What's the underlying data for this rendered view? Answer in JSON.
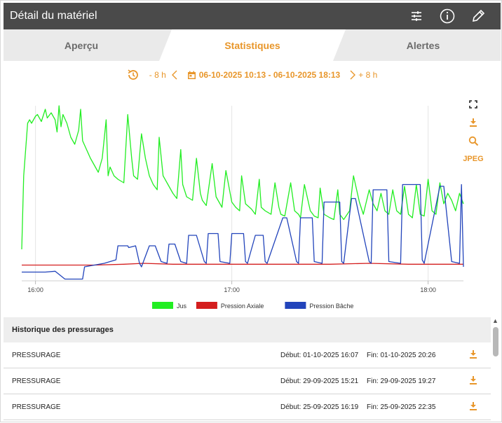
{
  "header": {
    "title": "Détail du matériel",
    "icons": [
      "tune-icon",
      "info-icon",
      "edit-icon"
    ]
  },
  "tabs": [
    {
      "label": "Aperçu",
      "active": false
    },
    {
      "label": "Statistiques",
      "active": true
    },
    {
      "label": "Alertes",
      "active": false
    }
  ],
  "toolbar": {
    "back_label": "- 8 h",
    "range_label": "06-10-2025 10:13 - 06-10-2025 18:13",
    "forward_label": "+ 8 h"
  },
  "chart_tools": {
    "jpeg_label": "JPEG"
  },
  "colors": {
    "accent": "#e8962a",
    "jus": "#22ee22",
    "axiale": "#d41e1e",
    "bache": "#2244bb"
  },
  "chart_data": {
    "type": "line",
    "x_ticks": [
      "16:00",
      "17:00",
      "18:00"
    ],
    "x_range": [
      15.93,
      18.18
    ],
    "y_range": [
      0,
      100
    ],
    "legend_position": "bottom",
    "series": [
      {
        "name": "Jus",
        "color": "#22ee22",
        "x": [
          15.93,
          15.94,
          15.96,
          15.97,
          15.98,
          16.0,
          16.01,
          16.03,
          16.05,
          16.06,
          16.08,
          16.1,
          16.11,
          16.12,
          16.13,
          16.14,
          16.16,
          16.18,
          16.2,
          16.22,
          16.23,
          16.24,
          16.26,
          16.28,
          16.3,
          16.32,
          16.34,
          16.36,
          16.37,
          16.38,
          16.4,
          16.42,
          16.45,
          16.47,
          16.49,
          16.5,
          16.52,
          16.54,
          16.56,
          16.58,
          16.6,
          16.62,
          16.63,
          16.65,
          16.68,
          16.7,
          16.72,
          16.74,
          16.75,
          16.77,
          16.8,
          16.82,
          16.84,
          16.85,
          16.87,
          16.9,
          16.92,
          16.94,
          16.95,
          16.97,
          17.0,
          17.02,
          17.04,
          17.05,
          17.07,
          17.1,
          17.12,
          17.14,
          17.15,
          17.17,
          17.2,
          17.22,
          17.24,
          17.25,
          17.27,
          17.3,
          17.32,
          17.34,
          17.35,
          17.37,
          17.4,
          17.42,
          17.44,
          17.45,
          17.47,
          17.5,
          17.52,
          17.54,
          17.55,
          17.57,
          17.6,
          17.62,
          17.64,
          17.65,
          17.67,
          17.7,
          17.72,
          17.74,
          17.76,
          17.78,
          17.8,
          17.82,
          17.84,
          17.86,
          17.88,
          17.9,
          17.92,
          17.94,
          17.96,
          17.98,
          18.0,
          18.02,
          18.04,
          18.06,
          18.08,
          18.1,
          18.12,
          18.14,
          18.16,
          18.18
        ],
        "y": [
          18,
          60,
          90,
          92,
          90,
          94,
          95,
          91,
          98,
          93,
          96,
          92,
          85,
          100,
          88,
          95,
          90,
          82,
          78,
          86,
          98,
          80,
          75,
          70,
          66,
          62,
          70,
          92,
          60,
          65,
          60,
          58,
          56,
          95,
          70,
          60,
          58,
          84,
          70,
          60,
          55,
          52,
          82,
          60,
          54,
          50,
          47,
          75,
          55,
          48,
          46,
          70,
          50,
          46,
          43,
          67,
          48,
          44,
          42,
          63,
          45,
          42,
          40,
          60,
          44,
          41,
          38,
          58,
          42,
          40,
          38,
          56,
          42,
          38,
          37,
          56,
          40,
          38,
          36,
          55,
          40,
          37,
          36,
          53,
          38,
          36,
          35,
          52,
          38,
          35,
          40,
          60,
          50,
          45,
          38,
          52,
          44,
          40,
          50,
          40,
          38,
          52,
          40,
          38,
          54,
          38,
          36,
          55,
          38,
          37,
          58,
          40,
          38,
          56,
          44,
          50,
          46,
          40,
          50,
          44
        ]
      },
      {
        "name": "Pression Axiale",
        "color": "#d41e1e",
        "x": [
          15.93,
          16.1,
          16.3,
          16.45,
          16.55,
          16.7,
          16.9,
          17.1,
          17.3,
          17.5,
          17.7,
          17.9,
          18.1,
          18.18
        ],
        "y": [
          9,
          9,
          9,
          9.5,
          10,
          9.5,
          9.5,
          9.5,
          9.5,
          9.5,
          10,
          9.5,
          9.5,
          9.5
        ]
      },
      {
        "name": "Pression Bâche",
        "color": "#2244bb",
        "x": [
          15.93,
          16.05,
          16.1,
          16.15,
          16.24,
          16.25,
          16.3,
          16.35,
          16.41,
          16.42,
          16.43,
          16.47,
          16.475,
          16.51,
          16.53,
          16.54,
          16.58,
          16.6,
          16.61,
          16.64,
          16.67,
          16.68,
          16.7,
          16.71,
          16.74,
          16.77,
          16.78,
          16.81,
          16.82,
          16.86,
          16.87,
          16.88,
          16.92,
          16.93,
          16.94,
          16.99,
          17.0,
          17.01,
          17.06,
          17.07,
          17.08,
          17.12,
          17.13,
          17.16,
          17.17,
          17.18,
          17.26,
          17.27,
          17.28,
          17.33,
          17.34,
          17.35,
          17.4,
          17.41,
          17.42,
          17.46,
          17.47,
          17.48,
          17.55,
          17.56,
          17.57,
          17.61,
          17.62,
          17.63,
          17.7,
          17.71,
          17.72,
          17.78,
          17.79,
          17.8,
          17.86,
          17.87,
          17.88,
          17.96,
          17.97,
          17.98,
          18.06,
          18.07,
          18.08,
          18.12,
          18.16,
          18.17,
          18.18
        ],
        "y": [
          5,
          5,
          5.5,
          1,
          1,
          8,
          9,
          10,
          12,
          20,
          20,
          20,
          19,
          20,
          10,
          8,
          20,
          20,
          20,
          11,
          10,
          21,
          21,
          21,
          11,
          10,
          26,
          26,
          26,
          11,
          10,
          27,
          27,
          27,
          11,
          10,
          27,
          27,
          27,
          11,
          10,
          26,
          26,
          26,
          11,
          10,
          36,
          36,
          36,
          11,
          10,
          36,
          36,
          36,
          11,
          10,
          45,
          45,
          45,
          11,
          10,
          47,
          47,
          47,
          11,
          10,
          52,
          52,
          52,
          11,
          10,
          55,
          55,
          55,
          12,
          10,
          54,
          54,
          54,
          11,
          10,
          55,
          8
        ]
      }
    ]
  },
  "history": {
    "title": "Historique des pressurages",
    "rows": [
      {
        "name": "PRESSURAGE",
        "start": "Début: 01-10-2025 16:07",
        "end": "Fin: 01-10-2025 20:26"
      },
      {
        "name": "PRESSURAGE",
        "start": "Début: 29-09-2025 15:21",
        "end": "Fin: 29-09-2025 19:27"
      },
      {
        "name": "PRESSURAGE",
        "start": "Début: 25-09-2025 16:19",
        "end": "Fin: 25-09-2025 22:35"
      }
    ]
  }
}
